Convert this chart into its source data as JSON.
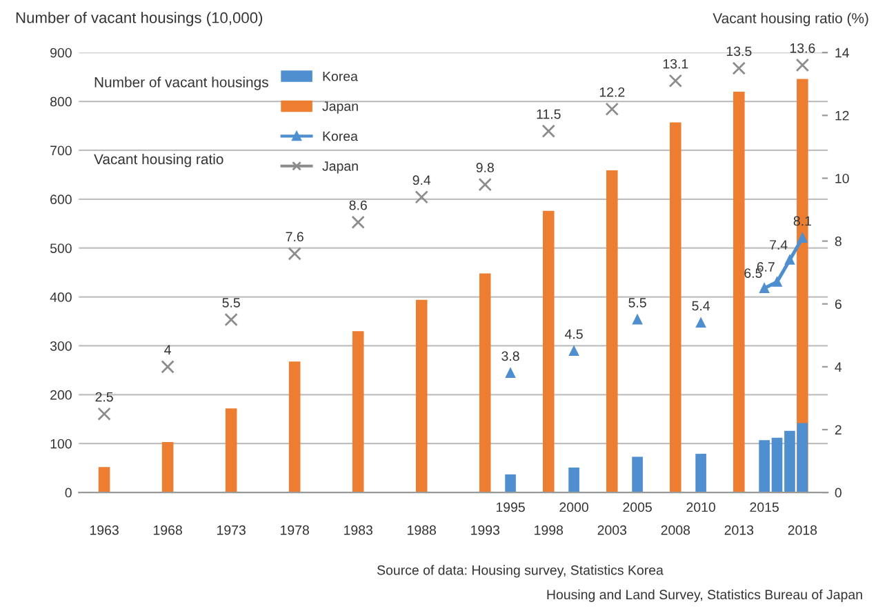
{
  "chart_data": {
    "type": "bar",
    "ylabel": "Number of vacant housings (10,000)",
    "y2label": "Vacant housing ratio (%)",
    "x": [
      1963,
      1968,
      1973,
      1978,
      1983,
      1988,
      1993,
      1998,
      2003,
      2008,
      2013,
      2018
    ],
    "series": [
      {
        "name": "Korea",
        "color": "#4f8fd0",
        "x": [
          1995,
          2000,
          2005,
          2010,
          2015,
          2016,
          2017,
          2018
        ],
        "values": [
          37,
          51,
          73,
          79,
          107,
          112,
          126,
          142
        ]
      },
      {
        "name": "Japan",
        "color": "#ed7d31",
        "values": [
          52,
          103,
          172,
          268,
          330,
          394,
          448,
          576,
          659,
          757,
          820,
          846
        ]
      },
      {
        "type": "scatter",
        "axis": "y2",
        "color": "#4f8fd0",
        "marker": "triangle",
        "x": [
          1995,
          2000,
          2005,
          2010
        ],
        "values": [
          3.8,
          4.5,
          5.5,
          5.4
        ],
        "value_labels": [
          "3.8",
          "4.5",
          "5.5",
          "5.4"
        ]
      },
      {
        "name": "Korea",
        "type": "line",
        "axis": "y2",
        "color": "#4f8fd0",
        "marker": "triangle",
        "x": [
          2015,
          2016,
          2017,
          2018
        ],
        "values": [
          6.5,
          6.7,
          7.4,
          8.1
        ],
        "value_labels": [
          "6.5",
          "6.7",
          "7.4",
          "8.1"
        ]
      },
      {
        "name": "Japan",
        "type": "scatter",
        "axis": "y2",
        "color": "#8c8c8c",
        "marker": "cross",
        "values": [
          2.5,
          4,
          5.5,
          7.6,
          8.6,
          9.4,
          9.8,
          11.5,
          12.2,
          13.1,
          13.5,
          13.6
        ],
        "value_labels": [
          "2.5",
          "4",
          "5.5",
          "7.6",
          "8.6",
          "9.4",
          "9.8",
          "11.5",
          "12.2",
          "13.1",
          "13.5",
          "13.6"
        ]
      }
    ],
    "xlim": [
      1961,
      2020
    ],
    "xticks": [
      1963,
      1968,
      1973,
      1978,
      1983,
      1988,
      1993,
      1998,
      2003,
      2008,
      2013,
      2018
    ],
    "x2lim": [
      1961,
      2020
    ],
    "x2ticks": [
      1995,
      2000,
      2005,
      2010,
      2015
    ],
    "ylim": [
      0,
      900
    ],
    "yticks": [
      0,
      100,
      200,
      300,
      400,
      500,
      600,
      700,
      800,
      900
    ],
    "y2lim": [
      0,
      14
    ],
    "y2ticks": [
      0,
      2,
      4,
      6,
      8,
      10,
      12,
      14
    ],
    "grid": "y",
    "legend": "top left",
    "annotations": [
      "Number of vacant housings",
      "Vacant housing ratio",
      "Source of data: Housing survey, Statistics Korea",
      "Housing and Land Survey, Statistics Bureau of Japan"
    ]
  }
}
